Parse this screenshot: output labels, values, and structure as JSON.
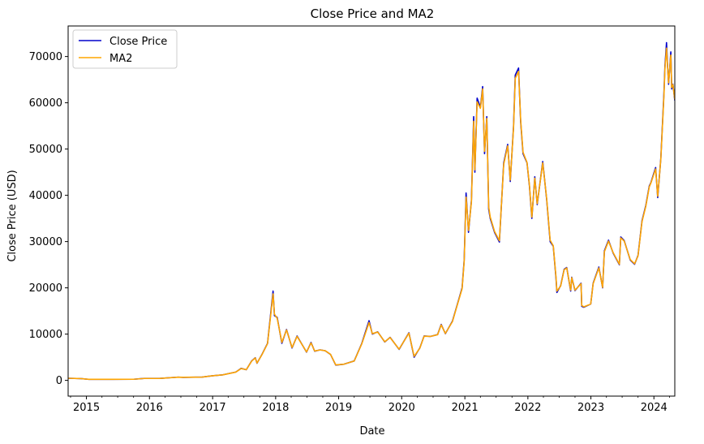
{
  "chart_data": {
    "type": "line",
    "title": "Close Price and MA2",
    "xlabel": "Date",
    "ylabel": "Close Price (USD)",
    "xlim": [
      "2014-09-17",
      "2024-05-01"
    ],
    "ylim": [
      -3400,
      76600
    ],
    "x_ticks": [
      "2015",
      "2016",
      "2017",
      "2018",
      "2019",
      "2020",
      "2021",
      "2022",
      "2023",
      "2024"
    ],
    "y_ticks": [
      0,
      10000,
      20000,
      30000,
      40000,
      50000,
      60000,
      70000
    ],
    "y_tick_labels": [
      "0",
      "10000",
      "20000",
      "30000",
      "40000",
      "50000",
      "60000",
      "70000"
    ],
    "legend_position": "upper-left",
    "grid": false,
    "series": [
      {
        "name": "Close Price",
        "color": "#0000cc",
        "x": [
          "2014-09-17",
          "2014-12-01",
          "2015-01-15",
          "2015-06-01",
          "2015-10-01",
          "2015-12-01",
          "2016-03-01",
          "2016-06-15",
          "2016-07-15",
          "2016-11-01",
          "2017-01-01",
          "2017-03-01",
          "2017-05-15",
          "2017-06-15",
          "2017-07-15",
          "2017-08-15",
          "2017-09-05",
          "2017-09-15",
          "2017-10-15",
          "2017-11-15",
          "2017-12-17",
          "2017-12-25",
          "2018-01-10",
          "2018-02-06",
          "2018-03-05",
          "2018-04-06",
          "2018-05-05",
          "2018-06-29",
          "2018-07-25",
          "2018-08-15",
          "2018-09-15",
          "2018-10-15",
          "2018-11-15",
          "2018-12-15",
          "2019-02-01",
          "2019-04-01",
          "2019-05-15",
          "2019-06-26",
          "2019-07-15",
          "2019-08-15",
          "2019-09-25",
          "2019-10-26",
          "2019-12-17",
          "2020-02-12",
          "2020-03-13",
          "2020-04-15",
          "2020-05-10",
          "2020-06-15",
          "2020-07-27",
          "2020-08-17",
          "2020-09-10",
          "2020-10-21",
          "2020-11-15",
          "2020-12-16",
          "2020-12-28",
          "2021-01-08",
          "2021-01-22",
          "2021-02-08",
          "2021-02-21",
          "2021-02-28",
          "2021-03-13",
          "2021-04-01",
          "2021-04-14",
          "2021-04-25",
          "2021-05-08",
          "2021-05-19",
          "2021-05-28",
          "2021-06-22",
          "2021-07-20",
          "2021-08-14",
          "2021-09-06",
          "2021-09-21",
          "2021-10-10",
          "2021-10-20",
          "2021-11-08",
          "2021-11-20",
          "2021-12-04",
          "2021-12-27",
          "2022-01-10",
          "2022-01-24",
          "2022-02-10",
          "2022-02-24",
          "2022-03-28",
          "2022-04-20",
          "2022-05-10",
          "2022-05-28",
          "2022-06-13",
          "2022-06-18",
          "2022-07-10",
          "2022-07-30",
          "2022-08-14",
          "2022-09-06",
          "2022-09-12",
          "2022-10-01",
          "2022-11-05",
          "2022-11-09",
          "2022-11-21",
          "2022-12-31",
          "2023-01-14",
          "2023-02-16",
          "2023-03-10",
          "2023-03-20",
          "2023-04-13",
          "2023-05-10",
          "2023-06-15",
          "2023-06-23",
          "2023-07-13",
          "2023-08-17",
          "2023-09-11",
          "2023-10-01",
          "2023-10-24",
          "2023-11-15",
          "2023-12-05",
          "2023-12-15",
          "2024-01-11",
          "2024-01-23",
          "2024-02-10",
          "2024-02-28",
          "2024-03-05",
          "2024-03-14",
          "2024-03-20",
          "2024-03-26",
          "2024-04-08",
          "2024-04-13",
          "2024-04-20",
          "2024-05-01"
        ],
        "values": [
          460,
          380,
          220,
          230,
          240,
          420,
          420,
          700,
          650,
          720,
          1000,
          1200,
          1800,
          2600,
          2300,
          4200,
          4900,
          3700,
          5700,
          8000,
          19300,
          14000,
          13600,
          8000,
          11000,
          7000,
          9600,
          6100,
          8200,
          6300,
          6600,
          6400,
          5600,
          3300,
          3500,
          4200,
          8000,
          12900,
          10000,
          10500,
          8300,
          9300,
          6700,
          10300,
          5000,
          7000,
          9600,
          9500,
          9900,
          12100,
          10100,
          12800,
          16000,
          20000,
          26000,
          40500,
          32000,
          38900,
          57000,
          45000,
          61000,
          59000,
          63500,
          49000,
          57000,
          37000,
          35000,
          32000,
          29900,
          47000,
          51000,
          43000,
          55000,
          66000,
          67500,
          56000,
          49000,
          47000,
          42000,
          35000,
          44000,
          38000,
          47300,
          39000,
          30000,
          29000,
          22000,
          19000,
          20500,
          24000,
          24400,
          19300,
          22300,
          19400,
          21000,
          16000,
          15800,
          16500,
          21000,
          24500,
          20000,
          28000,
          30300,
          27500,
          25000,
          31000,
          30200,
          26000,
          25100,
          27000,
          34500,
          37800,
          42000,
          42800,
          46000,
          39500,
          48000,
          62000,
          68000,
          73000,
          68000,
          64000,
          71000,
          63000,
          64000,
          60500
        ]
      },
      {
        "name": "MA2",
        "color": "#ffa500",
        "x": [
          "2014-09-17",
          "2014-12-01",
          "2015-01-15",
          "2015-06-01",
          "2015-10-01",
          "2015-12-01",
          "2016-03-01",
          "2016-06-15",
          "2016-07-15",
          "2016-11-01",
          "2017-01-01",
          "2017-03-01",
          "2017-05-15",
          "2017-06-15",
          "2017-07-15",
          "2017-08-15",
          "2017-09-05",
          "2017-09-15",
          "2017-10-15",
          "2017-11-15",
          "2017-12-17",
          "2017-12-25",
          "2018-01-10",
          "2018-02-06",
          "2018-03-05",
          "2018-04-06",
          "2018-05-05",
          "2018-06-29",
          "2018-07-25",
          "2018-08-15",
          "2018-09-15",
          "2018-10-15",
          "2018-11-15",
          "2018-12-15",
          "2019-02-01",
          "2019-04-01",
          "2019-05-15",
          "2019-06-26",
          "2019-07-15",
          "2019-08-15",
          "2019-09-25",
          "2019-10-26",
          "2019-12-17",
          "2020-02-12",
          "2020-03-13",
          "2020-04-15",
          "2020-05-10",
          "2020-06-15",
          "2020-07-27",
          "2020-08-17",
          "2020-09-10",
          "2020-10-21",
          "2020-11-15",
          "2020-12-16",
          "2020-12-28",
          "2021-01-08",
          "2021-01-22",
          "2021-02-08",
          "2021-02-21",
          "2021-02-28",
          "2021-03-13",
          "2021-04-01",
          "2021-04-14",
          "2021-04-25",
          "2021-05-08",
          "2021-05-19",
          "2021-05-28",
          "2021-06-22",
          "2021-07-20",
          "2021-08-14",
          "2021-09-06",
          "2021-09-21",
          "2021-10-10",
          "2021-10-20",
          "2021-11-08",
          "2021-11-20",
          "2021-12-04",
          "2021-12-27",
          "2022-01-10",
          "2022-01-24",
          "2022-02-10",
          "2022-02-24",
          "2022-03-28",
          "2022-04-20",
          "2022-05-10",
          "2022-05-28",
          "2022-06-13",
          "2022-06-18",
          "2022-07-10",
          "2022-07-30",
          "2022-08-14",
          "2022-09-06",
          "2022-09-12",
          "2022-10-01",
          "2022-11-05",
          "2022-11-09",
          "2022-11-21",
          "2022-12-31",
          "2023-01-14",
          "2023-02-16",
          "2023-03-10",
          "2023-03-20",
          "2023-04-13",
          "2023-05-10",
          "2023-06-15",
          "2023-06-23",
          "2023-07-13",
          "2023-08-17",
          "2023-09-11",
          "2023-10-01",
          "2023-10-24",
          "2023-11-15",
          "2023-12-05",
          "2023-12-15",
          "2024-01-11",
          "2024-01-23",
          "2024-02-10",
          "2024-02-28",
          "2024-03-05",
          "2024-03-14",
          "2024-03-20",
          "2024-03-26",
          "2024-04-08",
          "2024-04-13",
          "2024-04-20",
          "2024-05-01"
        ],
        "values": [
          460,
          385,
          225,
          230,
          240,
          415,
          420,
          690,
          660,
          715,
          990,
          1190,
          1780,
          2550,
          2320,
          4150,
          4850,
          3750,
          5650,
          7950,
          18700,
          14300,
          13400,
          8200,
          10900,
          7100,
          9500,
          6150,
          8100,
          6350,
          6580,
          6420,
          5620,
          3350,
          3500,
          4180,
          7900,
          12500,
          10100,
          10450,
          8350,
          9250,
          6750,
          10200,
          5200,
          6950,
          9550,
          9500,
          9880,
          12000,
          10150,
          12700,
          15900,
          19800,
          25700,
          39600,
          32400,
          38500,
          56000,
          45500,
          60200,
          58800,
          63000,
          49500,
          56600,
          37500,
          35300,
          32200,
          30200,
          46700,
          50700,
          43300,
          54600,
          65300,
          66800,
          56400,
          49300,
          47100,
          42200,
          35300,
          43700,
          38200,
          47000,
          39200,
          30300,
          29100,
          22300,
          19300,
          20400,
          23900,
          24300,
          19500,
          22200,
          19500,
          20900,
          16200,
          15900,
          16500,
          20900,
          24300,
          20100,
          27800,
          30100,
          27600,
          25100,
          30800,
          30100,
          26100,
          25200,
          26900,
          34300,
          37600,
          41800,
          42700,
          45700,
          39800,
          47800,
          61500,
          67500,
          71800,
          67800,
          64300,
          70300,
          63300,
          63900,
          60700
        ]
      }
    ]
  }
}
